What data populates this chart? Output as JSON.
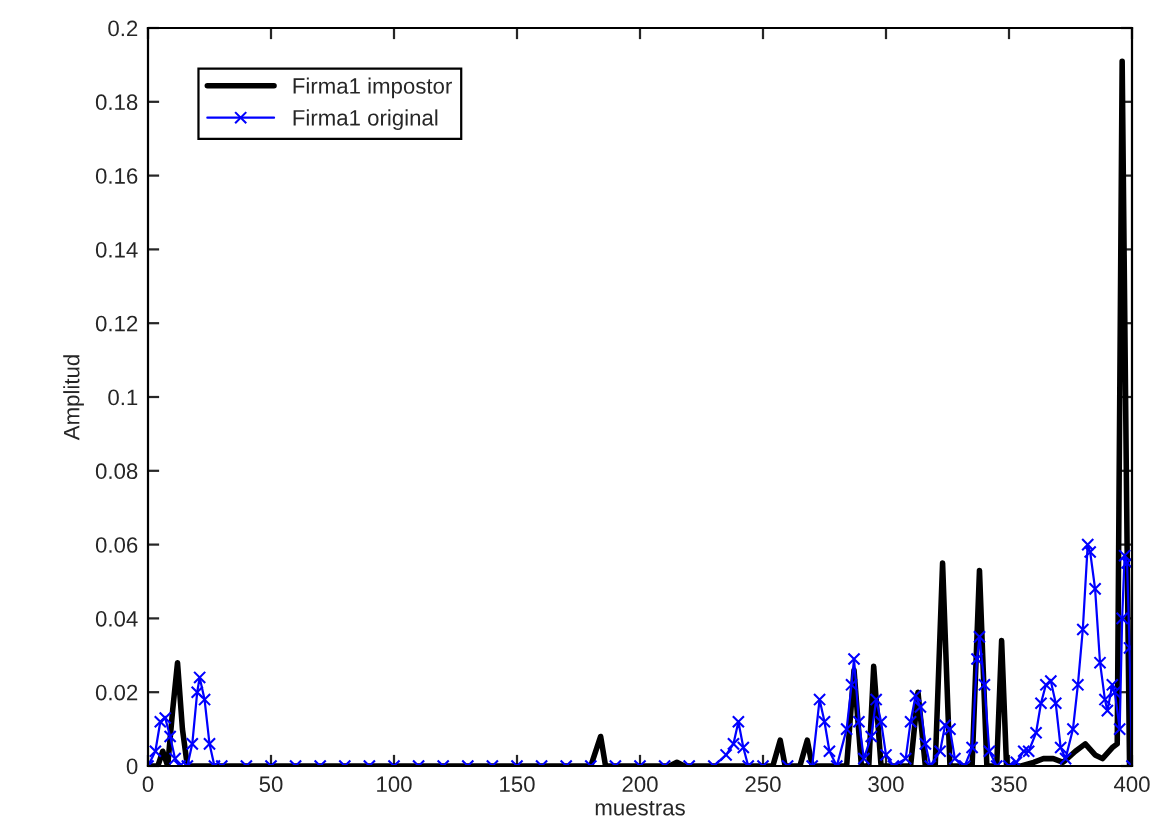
{
  "chart_data": {
    "type": "line",
    "xlabel": "muestras",
    "ylabel": "Amplitud",
    "xlim": [
      0,
      400
    ],
    "xticks": [
      0,
      50,
      100,
      150,
      200,
      250,
      300,
      350,
      400
    ],
    "ylim": [
      0,
      0.2
    ],
    "yticks": [
      0,
      0.02,
      0.04,
      0.06,
      0.08,
      0.1,
      0.12,
      0.14,
      0.16,
      0.18,
      0.2
    ],
    "grid": false,
    "legend": "top left",
    "series": [
      {
        "name": "Firma1 impostor",
        "color": "#000000",
        "marker": "none",
        "line_style": "solid",
        "x": [
          0,
          4,
          6,
          8,
          10,
          12,
          14,
          16,
          180,
          184,
          186,
          212,
          215,
          218,
          254,
          257,
          259,
          265,
          268,
          270,
          284,
          287,
          290,
          293,
          295,
          298,
          310,
          313,
          316,
          320,
          323,
          326,
          335,
          338,
          341,
          345,
          347,
          349,
          355,
          360,
          364,
          368,
          372,
          377,
          381,
          385,
          388,
          392,
          394,
          396,
          398,
          399
        ],
        "values": [
          0,
          0,
          0.004,
          0,
          0.015,
          0.028,
          0.01,
          0,
          0,
          0.008,
          0,
          0,
          0.001,
          0,
          0,
          0.007,
          0,
          0,
          0.007,
          0,
          0,
          0.026,
          0,
          0,
          0.027,
          0,
          0,
          0.02,
          0,
          0,
          0.055,
          0,
          0,
          0.053,
          0,
          0,
          0.034,
          0,
          0,
          0.001,
          0.002,
          0.002,
          0.001,
          0.004,
          0.006,
          0.003,
          0.002,
          0.005,
          0.006,
          0.191,
          0.06,
          0
        ]
      },
      {
        "name": "Firma1 original",
        "color": "#0000ff",
        "marker": "cross",
        "line_style": "solid",
        "x": [
          0,
          3,
          5,
          7,
          9,
          11,
          13,
          16,
          18,
          20,
          21,
          23,
          25,
          27,
          30,
          40,
          50,
          60,
          70,
          80,
          90,
          100,
          110,
          120,
          130,
          140,
          150,
          160,
          170,
          180,
          190,
          200,
          210,
          220,
          230,
          235,
          238,
          240,
          242,
          244,
          250,
          260,
          270,
          273,
          275,
          277,
          280,
          284,
          286,
          287,
          289,
          291,
          294,
          296,
          298,
          300,
          303,
          308,
          310,
          312,
          314,
          316,
          318,
          322,
          324,
          326,
          328,
          332,
          335,
          337,
          338,
          340,
          342,
          345,
          350,
          353,
          356,
          358,
          361,
          363,
          365,
          367,
          369,
          371,
          373,
          376,
          378,
          380,
          382,
          383,
          385,
          387,
          389,
          390,
          392,
          393,
          395,
          396,
          397,
          398,
          399,
          400
        ],
        "values": [
          0,
          0.004,
          0.012,
          0.013,
          0.008,
          0.002,
          0,
          0,
          0.006,
          0.02,
          0.024,
          0.018,
          0.006,
          0,
          0,
          0,
          0,
          0,
          0,
          0,
          0,
          0,
          0,
          0,
          0,
          0,
          0,
          0,
          0,
          0,
          0,
          0,
          0,
          0,
          0,
          0.003,
          0.006,
          0.012,
          0.005,
          0,
          0,
          0,
          0,
          0.018,
          0.012,
          0.004,
          0,
          0.01,
          0.022,
          0.029,
          0.012,
          0.002,
          0.008,
          0.018,
          0.012,
          0.003,
          0,
          0.002,
          0.012,
          0.019,
          0.016,
          0.006,
          0,
          0.004,
          0.011,
          0.01,
          0.002,
          0,
          0.005,
          0.029,
          0.035,
          0.022,
          0.004,
          0,
          0,
          0.001,
          0.004,
          0.004,
          0.009,
          0.017,
          0.022,
          0.023,
          0.017,
          0.005,
          0.002,
          0.01,
          0.022,
          0.037,
          0.06,
          0.058,
          0.048,
          0.028,
          0.018,
          0.015,
          0.022,
          0.02,
          0.01,
          0.04,
          0.057,
          0.055,
          0.032,
          0
        ]
      }
    ]
  }
}
